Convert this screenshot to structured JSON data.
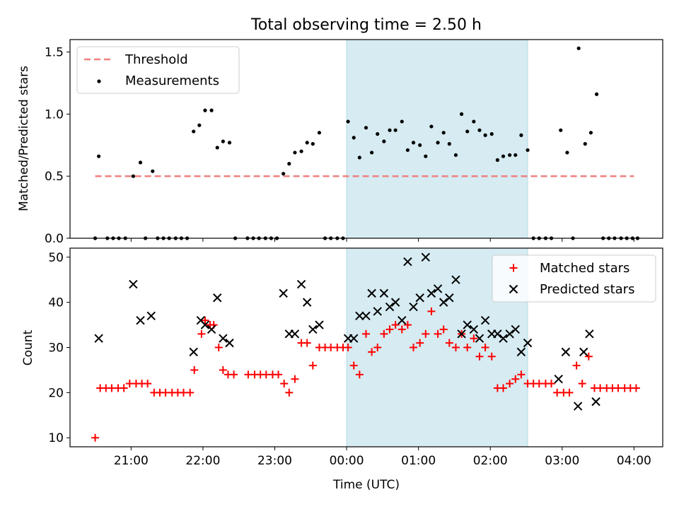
{
  "title": "Total observing time = 2.50 h",
  "xlabel": "Time (UTC)",
  "xticks": [
    "21:00",
    "22:00",
    "23:00",
    "00:00",
    "01:00",
    "02:00",
    "03:00",
    "04:00"
  ],
  "colors": {
    "threshold": "#f08080",
    "measurements": "#000000",
    "matched": "#ff0000",
    "predicted": "#000000",
    "span": "#add8e6"
  },
  "chart_data": [
    {
      "type": "scatter",
      "ylabel": "Matched/Predicted stars",
      "ylim": [
        0,
        1.6
      ],
      "yticks": [
        "0.0",
        "0.5",
        "1.0",
        "1.5"
      ],
      "x_units": "hours relative to 00:00 UTC",
      "x_range": [
        -3.85,
        4.4
      ],
      "shaded_span": [
        0.0,
        2.52
      ],
      "legend": "upper left",
      "threshold": {
        "name": "Threshold",
        "value": 0.5,
        "x_range": [
          -3.5,
          4.0
        ]
      },
      "series": [
        {
          "name": "Measurements",
          "points": [
            [
              -3.5,
              0
            ],
            [
              -3.45,
              0.66
            ],
            [
              -3.33,
              0
            ],
            [
              -3.25,
              0
            ],
            [
              -3.17,
              0
            ],
            [
              -3.08,
              0
            ],
            [
              -2.97,
              0.5
            ],
            [
              -2.87,
              0.61
            ],
            [
              -2.8,
              0
            ],
            [
              -2.7,
              0.54
            ],
            [
              -2.63,
              0
            ],
            [
              -2.55,
              0
            ],
            [
              -2.47,
              0
            ],
            [
              -2.38,
              0
            ],
            [
              -2.3,
              0
            ],
            [
              -2.22,
              0
            ],
            [
              -2.13,
              0.86
            ],
            [
              -2.05,
              0.91
            ],
            [
              -1.97,
              1.03
            ],
            [
              -1.88,
              1.03
            ],
            [
              -1.8,
              0.73
            ],
            [
              -1.72,
              0.78
            ],
            [
              -1.63,
              0.77
            ],
            [
              -1.55,
              0
            ],
            [
              -1.38,
              0
            ],
            [
              -1.3,
              0
            ],
            [
              -1.22,
              0
            ],
            [
              -1.13,
              0
            ],
            [
              -1.05,
              0
            ],
            [
              -0.97,
              0
            ],
            [
              -0.88,
              0.52
            ],
            [
              -0.8,
              0.6
            ],
            [
              -0.72,
              0.69
            ],
            [
              -0.63,
              0.7
            ],
            [
              -0.55,
              0.77
            ],
            [
              -0.47,
              0.76
            ],
            [
              -0.38,
              0.85
            ],
            [
              -0.3,
              0
            ],
            [
              -0.22,
              0
            ],
            [
              -0.13,
              0
            ],
            [
              -0.05,
              0
            ],
            [
              0.02,
              0.94
            ],
            [
              0.1,
              0.81
            ],
            [
              0.18,
              0.65
            ],
            [
              0.27,
              0.89
            ],
            [
              0.35,
              0.69
            ],
            [
              0.43,
              0.84
            ],
            [
              0.52,
              0.78
            ],
            [
              0.6,
              0.87
            ],
            [
              0.68,
              0.87
            ],
            [
              0.77,
              0.94
            ],
            [
              0.85,
              0.71
            ],
            [
              0.93,
              0.77
            ],
            [
              1.02,
              0.75
            ],
            [
              1.1,
              0.66
            ],
            [
              1.18,
              0.9
            ],
            [
              1.27,
              0.77
            ],
            [
              1.35,
              0.85
            ],
            [
              1.43,
              0.76
            ],
            [
              1.52,
              0.67
            ],
            [
              1.6,
              1.0
            ],
            [
              1.68,
              0.86
            ],
            [
              1.77,
              0.94
            ],
            [
              1.85,
              0.87
            ],
            [
              1.93,
              0.83
            ],
            [
              2.02,
              0.84
            ],
            [
              2.1,
              0.63
            ],
            [
              2.18,
              0.66
            ],
            [
              2.27,
              0.67
            ],
            [
              2.35,
              0.67
            ],
            [
              2.43,
              0.83
            ],
            [
              2.52,
              0.71
            ],
            [
              2.6,
              0
            ],
            [
              2.68,
              0
            ],
            [
              2.77,
              0
            ],
            [
              2.85,
              0
            ],
            [
              2.98,
              0.87
            ],
            [
              3.07,
              0.69
            ],
            [
              3.15,
              0
            ],
            [
              3.23,
              1.53
            ],
            [
              3.32,
              0.76
            ],
            [
              3.4,
              0.85
            ],
            [
              3.48,
              1.16
            ],
            [
              3.57,
              0
            ],
            [
              3.65,
              0
            ],
            [
              3.73,
              0
            ],
            [
              3.82,
              0
            ],
            [
              3.9,
              0
            ],
            [
              3.98,
              0
            ],
            [
              4.05,
              0
            ]
          ]
        }
      ]
    },
    {
      "type": "scatter",
      "ylabel": "Count",
      "ylim": [
        8,
        52
      ],
      "yticks": [
        "10",
        "20",
        "30",
        "40",
        "50"
      ],
      "x_units": "hours relative to 00:00 UTC",
      "x_range": [
        -3.85,
        4.4
      ],
      "shaded_span": [
        0.0,
        2.52
      ],
      "legend": "upper right",
      "series": [
        {
          "name": "Matched stars",
          "marker": "plus",
          "points": [
            [
              -3.5,
              10
            ],
            [
              -3.43,
              21
            ],
            [
              -3.35,
              21
            ],
            [
              -3.27,
              21
            ],
            [
              -3.18,
              21
            ],
            [
              -3.1,
              21
            ],
            [
              -3.02,
              22
            ],
            [
              -2.93,
              22
            ],
            [
              -2.85,
              22
            ],
            [
              -2.77,
              22
            ],
            [
              -2.68,
              20
            ],
            [
              -2.6,
              20
            ],
            [
              -2.52,
              20
            ],
            [
              -2.43,
              20
            ],
            [
              -2.35,
              20
            ],
            [
              -2.27,
              20
            ],
            [
              -2.18,
              20
            ],
            [
              -2.12,
              25
            ],
            [
              -2.02,
              33
            ],
            [
              -1.97,
              36
            ],
            [
              -1.9,
              35
            ],
            [
              -1.85,
              35
            ],
            [
              -1.78,
              30
            ],
            [
              -1.72,
              25
            ],
            [
              -1.65,
              24
            ],
            [
              -1.57,
              24
            ],
            [
              -1.37,
              24
            ],
            [
              -1.28,
              24
            ],
            [
              -1.2,
              24
            ],
            [
              -1.12,
              24
            ],
            [
              -1.03,
              24
            ],
            [
              -0.95,
              24
            ],
            [
              -0.87,
              22
            ],
            [
              -0.8,
              20
            ],
            [
              -0.72,
              23
            ],
            [
              -0.63,
              31
            ],
            [
              -0.55,
              31
            ],
            [
              -0.47,
              26
            ],
            [
              -0.38,
              30
            ],
            [
              -0.3,
              30
            ],
            [
              -0.22,
              30
            ],
            [
              -0.13,
              30
            ],
            [
              -0.05,
              30
            ],
            [
              0.02,
              30
            ],
            [
              0.1,
              26
            ],
            [
              0.18,
              24
            ],
            [
              0.27,
              33
            ],
            [
              0.35,
              29
            ],
            [
              0.43,
              30
            ],
            [
              0.52,
              33
            ],
            [
              0.6,
              34
            ],
            [
              0.68,
              35
            ],
            [
              0.77,
              34
            ],
            [
              0.85,
              35
            ],
            [
              0.93,
              30
            ],
            [
              1.02,
              31
            ],
            [
              1.1,
              33
            ],
            [
              1.18,
              38
            ],
            [
              1.27,
              33
            ],
            [
              1.35,
              34
            ],
            [
              1.43,
              31
            ],
            [
              1.52,
              30
            ],
            [
              1.6,
              33
            ],
            [
              1.68,
              30
            ],
            [
              1.77,
              32
            ],
            [
              1.85,
              28
            ],
            [
              1.93,
              30
            ],
            [
              2.02,
              28
            ],
            [
              2.1,
              21
            ],
            [
              2.18,
              21
            ],
            [
              2.27,
              22
            ],
            [
              2.35,
              23
            ],
            [
              2.43,
              24
            ],
            [
              2.52,
              22
            ],
            [
              2.6,
              22
            ],
            [
              2.68,
              22
            ],
            [
              2.77,
              22
            ],
            [
              2.85,
              22
            ],
            [
              2.93,
              20
            ],
            [
              3.02,
              20
            ],
            [
              3.1,
              20
            ],
            [
              3.2,
              26
            ],
            [
              3.28,
              22
            ],
            [
              3.37,
              28
            ],
            [
              3.45,
              21
            ],
            [
              3.53,
              21
            ],
            [
              3.62,
              21
            ],
            [
              3.7,
              21
            ],
            [
              3.78,
              21
            ],
            [
              3.87,
              21
            ],
            [
              3.95,
              21
            ],
            [
              4.03,
              21
            ]
          ]
        },
        {
          "name": "Predicted stars",
          "marker": "x",
          "points": [
            [
              -3.45,
              32
            ],
            [
              -2.97,
              44
            ],
            [
              -2.87,
              36
            ],
            [
              -2.72,
              37
            ],
            [
              -2.13,
              29
            ],
            [
              -2.03,
              36
            ],
            [
              -1.97,
              35
            ],
            [
              -1.88,
              34
            ],
            [
              -1.8,
              41
            ],
            [
              -1.72,
              32
            ],
            [
              -1.63,
              31
            ],
            [
              -0.88,
              42
            ],
            [
              -0.8,
              33
            ],
            [
              -0.72,
              33
            ],
            [
              -0.63,
              44
            ],
            [
              -0.55,
              40
            ],
            [
              -0.47,
              34
            ],
            [
              -0.38,
              35
            ],
            [
              0.02,
              32
            ],
            [
              0.1,
              32
            ],
            [
              0.18,
              37
            ],
            [
              0.27,
              37
            ],
            [
              0.35,
              42
            ],
            [
              0.43,
              38
            ],
            [
              0.52,
              42
            ],
            [
              0.6,
              39
            ],
            [
              0.68,
              40
            ],
            [
              0.77,
              36
            ],
            [
              0.85,
              49
            ],
            [
              0.93,
              39
            ],
            [
              1.02,
              41
            ],
            [
              1.1,
              50
            ],
            [
              1.18,
              42
            ],
            [
              1.27,
              43
            ],
            [
              1.35,
              40
            ],
            [
              1.43,
              41
            ],
            [
              1.52,
              45
            ],
            [
              1.6,
              33
            ],
            [
              1.68,
              35
            ],
            [
              1.77,
              34
            ],
            [
              1.85,
              32
            ],
            [
              1.93,
              36
            ],
            [
              2.02,
              33
            ],
            [
              2.1,
              33
            ],
            [
              2.18,
              32
            ],
            [
              2.27,
              33
            ],
            [
              2.35,
              34
            ],
            [
              2.43,
              29
            ],
            [
              2.52,
              31
            ],
            [
              2.95,
              23
            ],
            [
              3.05,
              29
            ],
            [
              3.22,
              17
            ],
            [
              3.3,
              29
            ],
            [
              3.38,
              33
            ],
            [
              3.47,
              18
            ]
          ]
        }
      ]
    }
  ]
}
